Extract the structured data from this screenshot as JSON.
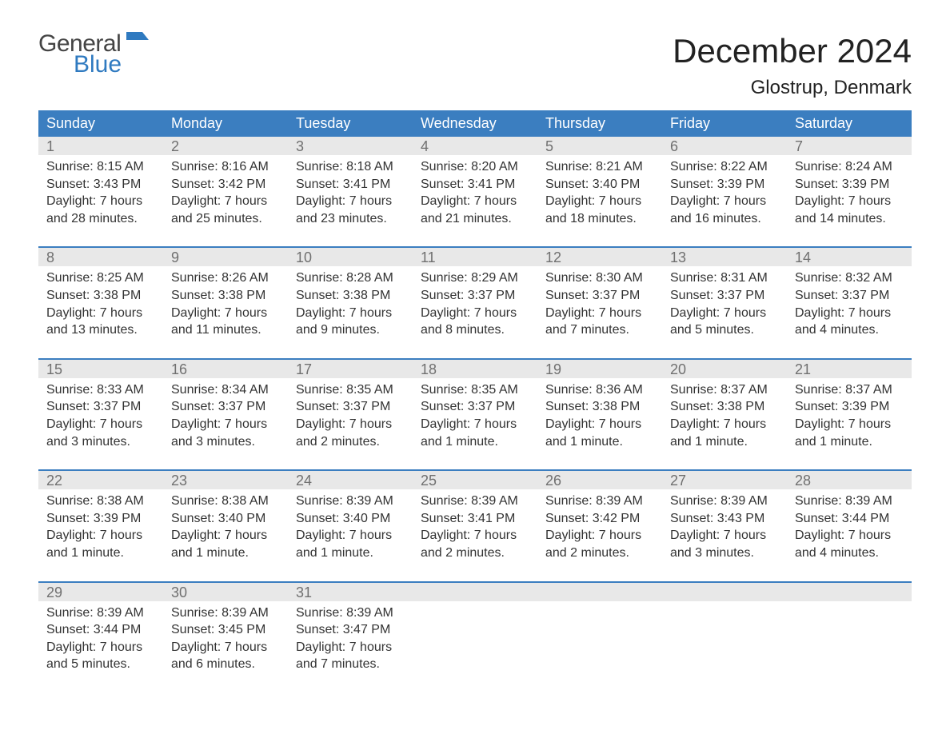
{
  "logo": {
    "word1": "General",
    "word2": "Blue"
  },
  "title": "December 2024",
  "location": "Glostrup, Denmark",
  "colors": {
    "header_bg": "#3b7ec0",
    "header_text": "#ffffff",
    "daynum_bg": "#e8e8e8",
    "daynum_text": "#707070",
    "body_text": "#333333",
    "accent_border": "#3b7ec0",
    "logo_blue": "#2f7ac0",
    "background": "#ffffff"
  },
  "weekdays": [
    "Sunday",
    "Monday",
    "Tuesday",
    "Wednesday",
    "Thursday",
    "Friday",
    "Saturday"
  ],
  "weeks": [
    [
      {
        "n": "1",
        "sunrise": "8:15 AM",
        "sunset": "3:43 PM",
        "daylight": "7 hours and 28 minutes."
      },
      {
        "n": "2",
        "sunrise": "8:16 AM",
        "sunset": "3:42 PM",
        "daylight": "7 hours and 25 minutes."
      },
      {
        "n": "3",
        "sunrise": "8:18 AM",
        "sunset": "3:41 PM",
        "daylight": "7 hours and 23 minutes."
      },
      {
        "n": "4",
        "sunrise": "8:20 AM",
        "sunset": "3:41 PM",
        "daylight": "7 hours and 21 minutes."
      },
      {
        "n": "5",
        "sunrise": "8:21 AM",
        "sunset": "3:40 PM",
        "daylight": "7 hours and 18 minutes."
      },
      {
        "n": "6",
        "sunrise": "8:22 AM",
        "sunset": "3:39 PM",
        "daylight": "7 hours and 16 minutes."
      },
      {
        "n": "7",
        "sunrise": "8:24 AM",
        "sunset": "3:39 PM",
        "daylight": "7 hours and 14 minutes."
      }
    ],
    [
      {
        "n": "8",
        "sunrise": "8:25 AM",
        "sunset": "3:38 PM",
        "daylight": "7 hours and 13 minutes."
      },
      {
        "n": "9",
        "sunrise": "8:26 AM",
        "sunset": "3:38 PM",
        "daylight": "7 hours and 11 minutes."
      },
      {
        "n": "10",
        "sunrise": "8:28 AM",
        "sunset": "3:38 PM",
        "daylight": "7 hours and 9 minutes."
      },
      {
        "n": "11",
        "sunrise": "8:29 AM",
        "sunset": "3:37 PM",
        "daylight": "7 hours and 8 minutes."
      },
      {
        "n": "12",
        "sunrise": "8:30 AM",
        "sunset": "3:37 PM",
        "daylight": "7 hours and 7 minutes."
      },
      {
        "n": "13",
        "sunrise": "8:31 AM",
        "sunset": "3:37 PM",
        "daylight": "7 hours and 5 minutes."
      },
      {
        "n": "14",
        "sunrise": "8:32 AM",
        "sunset": "3:37 PM",
        "daylight": "7 hours and 4 minutes."
      }
    ],
    [
      {
        "n": "15",
        "sunrise": "8:33 AM",
        "sunset": "3:37 PM",
        "daylight": "7 hours and 3 minutes."
      },
      {
        "n": "16",
        "sunrise": "8:34 AM",
        "sunset": "3:37 PM",
        "daylight": "7 hours and 3 minutes."
      },
      {
        "n": "17",
        "sunrise": "8:35 AM",
        "sunset": "3:37 PM",
        "daylight": "7 hours and 2 minutes."
      },
      {
        "n": "18",
        "sunrise": "8:35 AM",
        "sunset": "3:37 PM",
        "daylight": "7 hours and 1 minute."
      },
      {
        "n": "19",
        "sunrise": "8:36 AM",
        "sunset": "3:38 PM",
        "daylight": "7 hours and 1 minute."
      },
      {
        "n": "20",
        "sunrise": "8:37 AM",
        "sunset": "3:38 PM",
        "daylight": "7 hours and 1 minute."
      },
      {
        "n": "21",
        "sunrise": "8:37 AM",
        "sunset": "3:39 PM",
        "daylight": "7 hours and 1 minute."
      }
    ],
    [
      {
        "n": "22",
        "sunrise": "8:38 AM",
        "sunset": "3:39 PM",
        "daylight": "7 hours and 1 minute."
      },
      {
        "n": "23",
        "sunrise": "8:38 AM",
        "sunset": "3:40 PM",
        "daylight": "7 hours and 1 minute."
      },
      {
        "n": "24",
        "sunrise": "8:39 AM",
        "sunset": "3:40 PM",
        "daylight": "7 hours and 1 minute."
      },
      {
        "n": "25",
        "sunrise": "8:39 AM",
        "sunset": "3:41 PM",
        "daylight": "7 hours and 2 minutes."
      },
      {
        "n": "26",
        "sunrise": "8:39 AM",
        "sunset": "3:42 PM",
        "daylight": "7 hours and 2 minutes."
      },
      {
        "n": "27",
        "sunrise": "8:39 AM",
        "sunset": "3:43 PM",
        "daylight": "7 hours and 3 minutes."
      },
      {
        "n": "28",
        "sunrise": "8:39 AM",
        "sunset": "3:44 PM",
        "daylight": "7 hours and 4 minutes."
      }
    ],
    [
      {
        "n": "29",
        "sunrise": "8:39 AM",
        "sunset": "3:44 PM",
        "daylight": "7 hours and 5 minutes."
      },
      {
        "n": "30",
        "sunrise": "8:39 AM",
        "sunset": "3:45 PM",
        "daylight": "7 hours and 6 minutes."
      },
      {
        "n": "31",
        "sunrise": "8:39 AM",
        "sunset": "3:47 PM",
        "daylight": "7 hours and 7 minutes."
      },
      null,
      null,
      null,
      null
    ]
  ],
  "labels": {
    "sunrise": "Sunrise:",
    "sunset": "Sunset:",
    "daylight": "Daylight:"
  }
}
